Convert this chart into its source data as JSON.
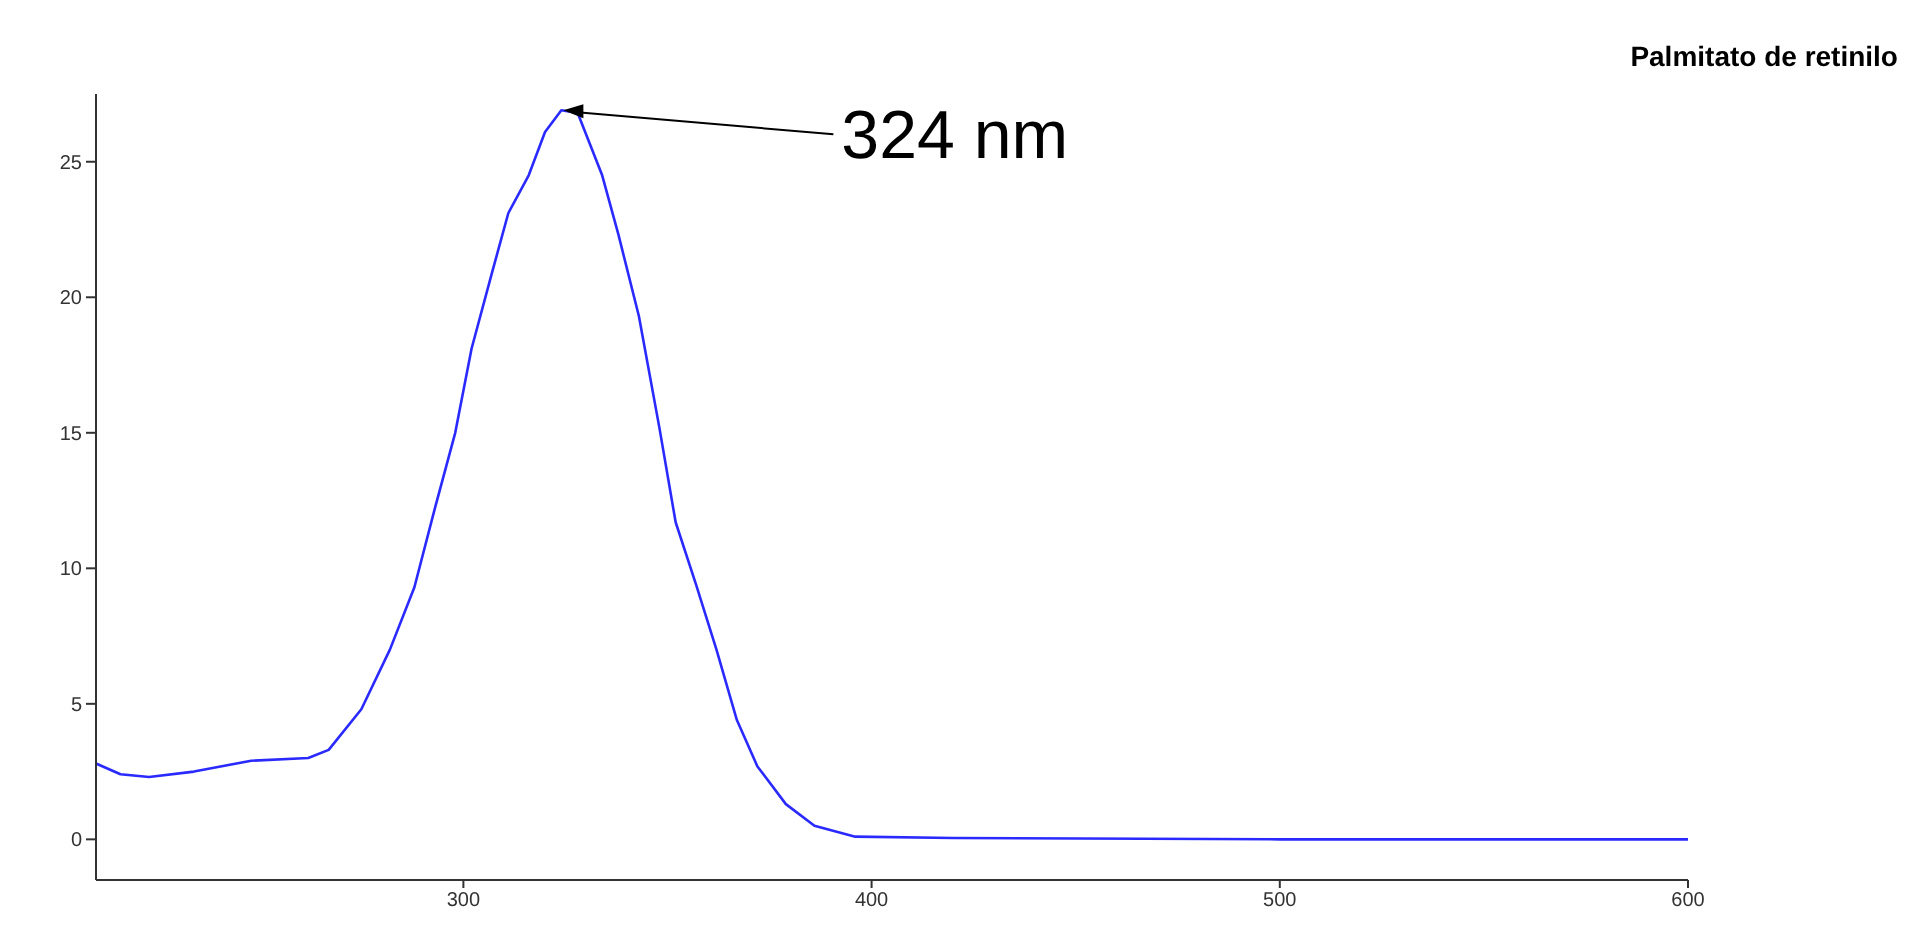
{
  "chart_data": {
    "type": "line",
    "title": "Palmitato de retinilo",
    "annotations": [
      {
        "text": "324 nm",
        "x": 324,
        "y": 26.9
      }
    ],
    "series": [
      {
        "color": "#2a2aff",
        "x": [
          210,
          216,
          223,
          234,
          248,
          262,
          267,
          275,
          282,
          288,
          293,
          298,
          302,
          307,
          311,
          316,
          320,
          324,
          328,
          334,
          338,
          343,
          348,
          352,
          357,
          362,
          367,
          372,
          379,
          386,
          396,
          420,
          500,
          600
        ],
        "values": [
          2.8,
          2.4,
          2.3,
          2.5,
          2.9,
          3.0,
          3.3,
          4.8,
          7.0,
          9.3,
          12.2,
          15.0,
          18.1,
          20.9,
          23.1,
          24.5,
          26.1,
          26.9,
          26.8,
          24.5,
          22.3,
          19.3,
          15.2,
          11.7,
          9.4,
          7.0,
          4.4,
          2.7,
          1.3,
          0.5,
          0.1,
          0.05,
          0,
          0
        ]
      }
    ],
    "xlim": [
      210,
      600
    ],
    "xticks": [
      300,
      400,
      500,
      600
    ],
    "ylim": [
      -1.5,
      27.5
    ],
    "yticks": [
      0,
      5,
      10,
      15,
      20,
      25
    ],
    "grid": false,
    "legend": false,
    "marker": "none",
    "line_style": "solid"
  }
}
